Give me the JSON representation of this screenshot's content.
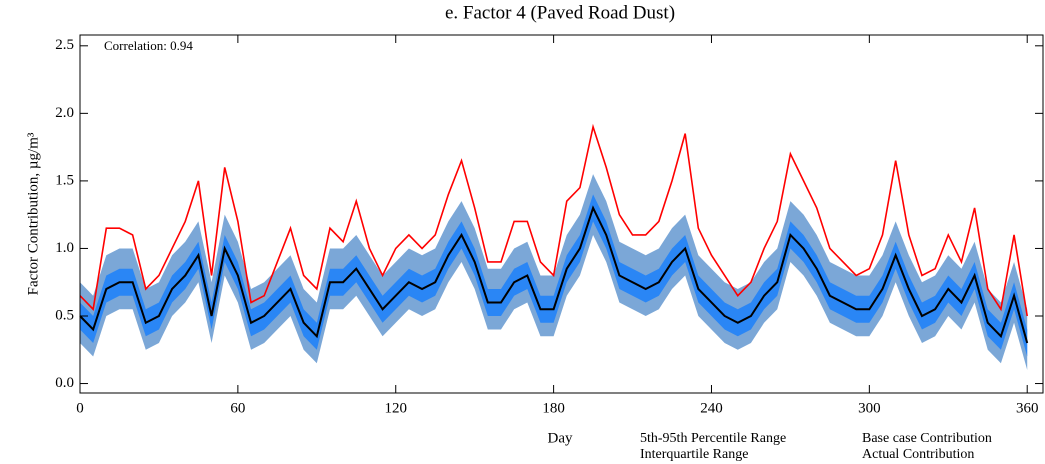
{
  "chart_data": {
    "type": "band-line",
    "title": "e.  Factor 4 (Paved Road Dust)",
    "annotation": "Correlation: 0.94",
    "x_label": "Day",
    "y_label": "Factor Contribution,  µg/m³",
    "xlim": [
      0,
      366
    ],
    "ylim": [
      -0.07,
      2.58
    ],
    "xticks": [
      0,
      60,
      120,
      180,
      240,
      300,
      360
    ],
    "yticks": [
      {
        "value": 0,
        "label": "0.0"
      },
      0.5,
      {
        "value": 1,
        "label": "1.0"
      },
      1.5,
      {
        "value": 2,
        "label": "2.0"
      },
      2.5
    ],
    "x": [
      0,
      5,
      10,
      15,
      20,
      25,
      30,
      35,
      40,
      45,
      50,
      55,
      60,
      65,
      70,
      75,
      80,
      85,
      90,
      95,
      100,
      105,
      110,
      115,
      120,
      125,
      130,
      135,
      140,
      145,
      150,
      155,
      160,
      165,
      170,
      175,
      180,
      185,
      190,
      195,
      200,
      205,
      210,
      215,
      220,
      225,
      230,
      235,
      240,
      245,
      250,
      255,
      260,
      265,
      270,
      275,
      280,
      285,
      290,
      295,
      300,
      305,
      310,
      315,
      320,
      325,
      330,
      335,
      340,
      345,
      350,
      355,
      360
    ],
    "series": [
      {
        "name": "5th-95th Percentile Range",
        "color": "#7ba7d7",
        "kind": "band",
        "lower": [
          0.3,
          0.2,
          0.5,
          0.55,
          0.55,
          0.25,
          0.3,
          0.5,
          0.6,
          0.75,
          0.3,
          0.8,
          0.6,
          0.25,
          0.3,
          0.4,
          0.5,
          0.25,
          0.15,
          0.55,
          0.55,
          0.65,
          0.5,
          0.35,
          0.45,
          0.55,
          0.5,
          0.55,
          0.75,
          0.9,
          0.7,
          0.4,
          0.4,
          0.55,
          0.6,
          0.35,
          0.35,
          0.65,
          0.8,
          1.1,
          0.9,
          0.6,
          0.55,
          0.5,
          0.55,
          0.7,
          0.8,
          0.5,
          0.4,
          0.3,
          0.25,
          0.3,
          0.45,
          0.55,
          0.9,
          0.8,
          0.65,
          0.45,
          0.4,
          0.35,
          0.35,
          0.5,
          0.75,
          0.5,
          0.3,
          0.35,
          0.5,
          0.4,
          0.6,
          0.25,
          0.15,
          0.45,
          0.1
        ],
        "upper": [
          0.75,
          0.65,
          0.95,
          1.0,
          1.0,
          0.7,
          0.75,
          0.95,
          1.05,
          1.2,
          0.75,
          1.25,
          1.05,
          0.7,
          0.75,
          0.85,
          0.95,
          0.7,
          0.6,
          1.0,
          1.0,
          1.1,
          0.95,
          0.8,
          0.9,
          1.0,
          0.95,
          1.0,
          1.2,
          1.35,
          1.15,
          0.85,
          0.85,
          1.0,
          1.05,
          0.8,
          0.8,
          1.1,
          1.25,
          1.55,
          1.35,
          1.05,
          1.0,
          0.95,
          1.0,
          1.15,
          1.25,
          0.95,
          0.85,
          0.75,
          0.7,
          0.75,
          0.9,
          1.0,
          1.35,
          1.25,
          1.1,
          0.9,
          0.85,
          0.8,
          0.8,
          0.95,
          1.2,
          0.95,
          0.75,
          0.8,
          0.95,
          0.85,
          1.05,
          0.7,
          0.6,
          0.9,
          0.55
        ]
      },
      {
        "name": "Interquartile Range",
        "color": "#2a86f5",
        "kind": "band",
        "lower": [
          0.4,
          0.3,
          0.6,
          0.65,
          0.65,
          0.35,
          0.4,
          0.6,
          0.7,
          0.85,
          0.4,
          0.9,
          0.7,
          0.35,
          0.4,
          0.5,
          0.6,
          0.35,
          0.25,
          0.65,
          0.65,
          0.75,
          0.6,
          0.45,
          0.55,
          0.65,
          0.6,
          0.65,
          0.85,
          1.0,
          0.8,
          0.5,
          0.5,
          0.65,
          0.7,
          0.45,
          0.45,
          0.75,
          0.9,
          1.2,
          1.0,
          0.7,
          0.65,
          0.6,
          0.65,
          0.8,
          0.9,
          0.6,
          0.5,
          0.4,
          0.35,
          0.4,
          0.55,
          0.65,
          1.0,
          0.9,
          0.75,
          0.55,
          0.5,
          0.45,
          0.45,
          0.6,
          0.85,
          0.6,
          0.4,
          0.45,
          0.6,
          0.5,
          0.7,
          0.35,
          0.25,
          0.55,
          0.2
        ],
        "upper": [
          0.6,
          0.5,
          0.8,
          0.85,
          0.85,
          0.55,
          0.6,
          0.8,
          0.9,
          1.05,
          0.6,
          1.1,
          0.9,
          0.55,
          0.6,
          0.7,
          0.8,
          0.55,
          0.45,
          0.85,
          0.85,
          0.95,
          0.8,
          0.65,
          0.75,
          0.85,
          0.8,
          0.85,
          1.05,
          1.2,
          1.0,
          0.7,
          0.7,
          0.85,
          0.9,
          0.65,
          0.65,
          0.95,
          1.1,
          1.4,
          1.2,
          0.9,
          0.85,
          0.8,
          0.85,
          1.0,
          1.1,
          0.8,
          0.7,
          0.6,
          0.55,
          0.6,
          0.75,
          0.85,
          1.2,
          1.1,
          0.95,
          0.75,
          0.7,
          0.65,
          0.65,
          0.8,
          1.05,
          0.8,
          0.6,
          0.65,
          0.8,
          0.7,
          0.9,
          0.55,
          0.45,
          0.75,
          0.4
        ]
      },
      {
        "name": "Base case Contribution",
        "color": "#000000",
        "kind": "line",
        "values": [
          0.5,
          0.4,
          0.7,
          0.75,
          0.75,
          0.45,
          0.5,
          0.7,
          0.8,
          0.95,
          0.5,
          1.0,
          0.8,
          0.45,
          0.5,
          0.6,
          0.7,
          0.45,
          0.35,
          0.75,
          0.75,
          0.85,
          0.7,
          0.55,
          0.65,
          0.75,
          0.7,
          0.75,
          0.95,
          1.1,
          0.9,
          0.6,
          0.6,
          0.75,
          0.8,
          0.55,
          0.55,
          0.85,
          1.0,
          1.3,
          1.1,
          0.8,
          0.75,
          0.7,
          0.75,
          0.9,
          1.0,
          0.7,
          0.6,
          0.5,
          0.45,
          0.5,
          0.65,
          0.75,
          1.1,
          1.0,
          0.85,
          0.65,
          0.6,
          0.55,
          0.55,
          0.7,
          0.95,
          0.7,
          0.5,
          0.55,
          0.7,
          0.6,
          0.8,
          0.45,
          0.35,
          0.65,
          0.3
        ]
      },
      {
        "name": "Actual Contribution",
        "color": "#ff0000",
        "kind": "line",
        "values": [
          0.65,
          0.55,
          1.15,
          1.15,
          1.1,
          0.7,
          0.8,
          1.0,
          1.2,
          1.5,
          0.8,
          1.6,
          1.2,
          0.6,
          0.65,
          0.9,
          1.15,
          0.8,
          0.7,
          1.15,
          1.05,
          1.35,
          1.0,
          0.8,
          1.0,
          1.1,
          1.0,
          1.1,
          1.4,
          1.65,
          1.3,
          0.9,
          0.9,
          1.2,
          1.2,
          0.9,
          0.8,
          1.35,
          1.45,
          1.9,
          1.6,
          1.25,
          1.1,
          1.1,
          1.2,
          1.5,
          1.85,
          1.15,
          0.95,
          0.8,
          0.65,
          0.75,
          1.0,
          1.2,
          1.7,
          1.5,
          1.3,
          1.0,
          0.9,
          0.8,
          0.85,
          1.1,
          1.65,
          1.1,
          0.8,
          0.85,
          1.1,
          0.9,
          1.3,
          0.7,
          0.55,
          1.1,
          0.5
        ]
      }
    ]
  }
}
